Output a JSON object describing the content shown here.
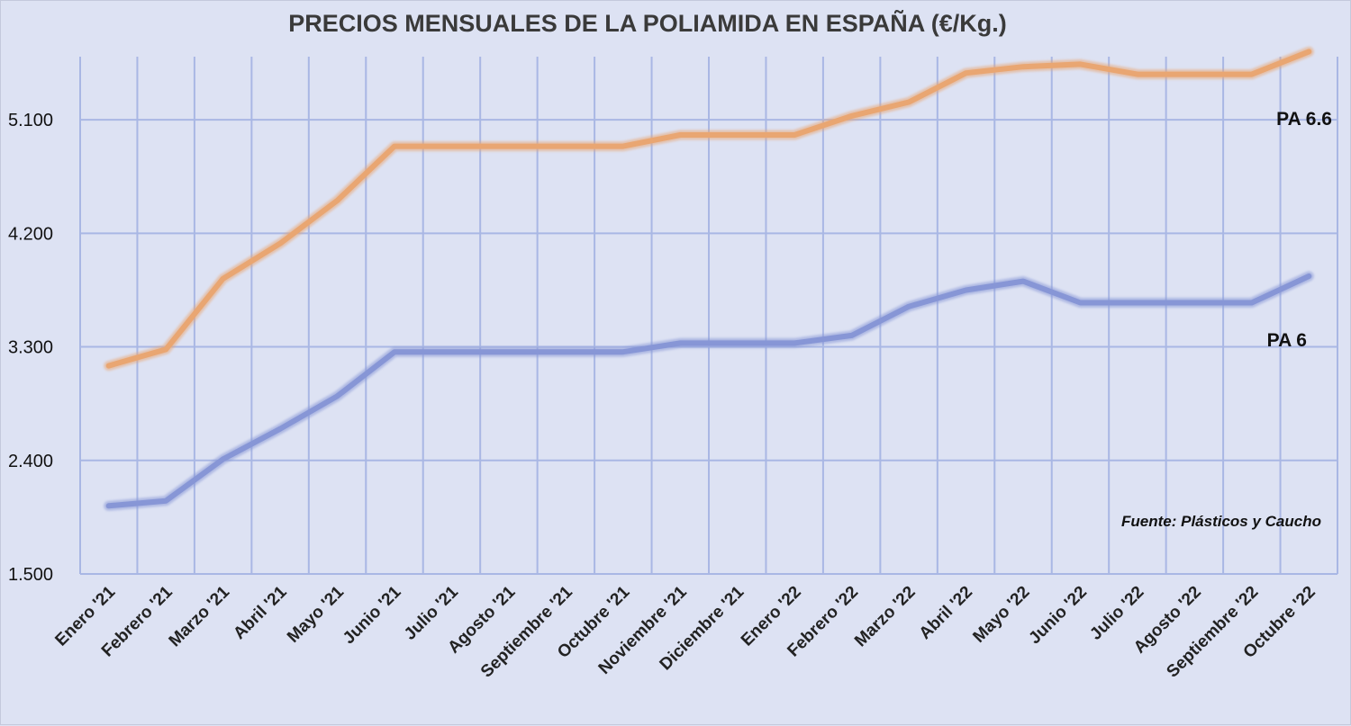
{
  "chart_data": {
    "type": "line",
    "title": "PRECIOS MENSUALES DE LA POLIAMIDA EN ESPAÑA (€/Kg.)",
    "categories": [
      "Enero '21",
      "Febrero '21",
      "Marzo '21",
      "Abril '21",
      "Mayo '21",
      "Junio '21",
      "Julio '21",
      "Agosto '21",
      "Septiembre '21",
      "Octubre '21",
      "Noviembre '21",
      "Diciembre '21",
      "Enero '22",
      "Febrero '22",
      "Marzo '22",
      "Abril '22",
      "Mayo '22",
      "Junio '22",
      "Julio '22",
      "Agosto '22",
      "Septiembre '22",
      "Octubre '22"
    ],
    "yticks": [
      "1.500",
      "2.400",
      "3.300",
      "4.200",
      "5.100"
    ],
    "ylim": [
      1500,
      5600
    ],
    "grid": true,
    "series": [
      {
        "name": "PA 6.6",
        "color": "#e9a672",
        "values": [
          3150,
          3280,
          3840,
          4120,
          4460,
          4890,
          4890,
          4890,
          4890,
          4890,
          4980,
          4980,
          4980,
          5130,
          5240,
          5470,
          5520,
          5540,
          5460,
          5460,
          5460,
          5640
        ]
      },
      {
        "name": "PA 6",
        "color": "#8796d6",
        "values": [
          2040,
          2080,
          2410,
          2650,
          2910,
          3260,
          3260,
          3260,
          3260,
          3260,
          3330,
          3330,
          3330,
          3390,
          3620,
          3750,
          3820,
          3650,
          3650,
          3650,
          3650,
          3860
        ]
      }
    ],
    "source": "Fuente: Plásticos y Caucho"
  }
}
